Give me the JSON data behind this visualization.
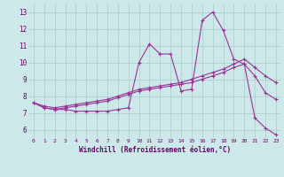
{
  "x": [
    0,
    1,
    2,
    3,
    4,
    5,
    6,
    7,
    8,
    9,
    10,
    11,
    12,
    13,
    14,
    15,
    16,
    17,
    18,
    19,
    20,
    21,
    22,
    23
  ],
  "line1": [
    7.6,
    7.3,
    7.2,
    7.2,
    7.1,
    7.1,
    7.1,
    7.1,
    7.2,
    7.3,
    10.0,
    11.1,
    10.5,
    10.5,
    8.3,
    8.4,
    12.5,
    13.0,
    11.9,
    10.2,
    9.9,
    6.7,
    6.1,
    5.7
  ],
  "line2": [
    7.6,
    7.3,
    7.2,
    7.3,
    7.4,
    7.5,
    7.6,
    7.7,
    7.9,
    8.1,
    8.3,
    8.4,
    8.5,
    8.6,
    8.7,
    8.8,
    9.0,
    9.2,
    9.4,
    9.7,
    9.9,
    9.2,
    8.2,
    7.8
  ],
  "line3": [
    7.6,
    7.4,
    7.3,
    7.4,
    7.5,
    7.6,
    7.7,
    7.8,
    8.0,
    8.2,
    8.4,
    8.5,
    8.6,
    8.7,
    8.8,
    9.0,
    9.2,
    9.4,
    9.6,
    9.9,
    10.2,
    9.7,
    9.2,
    8.8
  ],
  "line_color": "#993399",
  "bg_color": "#cce8e8",
  "grid_color": "#aacccc",
  "xlabel": "Windchill (Refroidissement éolien,°C)",
  "ylabel_ticks": [
    6,
    7,
    8,
    9,
    10,
    11,
    12,
    13
  ],
  "xlim": [
    -0.5,
    23.5
  ],
  "ylim": [
    5.5,
    13.5
  ],
  "tick_color": "#660066",
  "xlabel_color": "#660066"
}
